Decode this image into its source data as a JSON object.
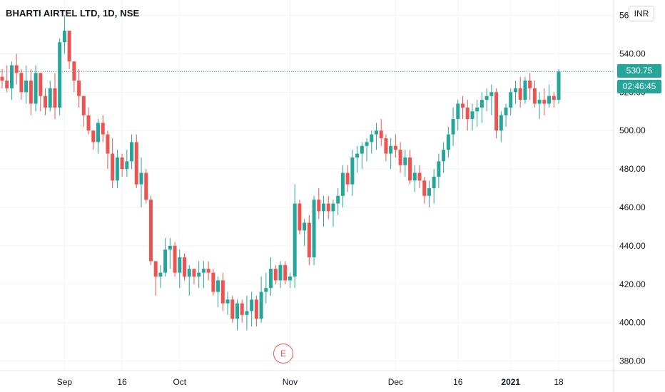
{
  "header": {
    "title": "BHARTI AIRTEL LTD, 1D, NSE",
    "currency_button": "INR"
  },
  "price_tag": {
    "last_price": "530.75",
    "countdown": "02:46:45"
  },
  "earnings_marker": "E",
  "colors": {
    "up": "#26a69a",
    "down": "#ef5350",
    "grid": "#f0f3fa",
    "axis_text": "#131722"
  },
  "chart_data": {
    "type": "candlestick",
    "title": "BHARTI AIRTEL LTD, 1D, NSE",
    "ylim": [
      375,
      568
    ],
    "y_ticks": [
      "560.00",
      "540.00",
      "520.00",
      "500.00",
      "480.00",
      "460.00",
      "440.00",
      "420.00",
      "400.00",
      "380.00"
    ],
    "x_ticks": [
      "Sep",
      "16",
      "Oct",
      "Nov",
      "Dec",
      "16",
      "2021",
      "18"
    ],
    "last_price": 530.75,
    "candles": [
      [
        528,
        532,
        522,
        526
      ],
      [
        526,
        534,
        520,
        522
      ],
      [
        522,
        536,
        516,
        534
      ],
      [
        534,
        540,
        524,
        530
      ],
      [
        530,
        532,
        516,
        520
      ],
      [
        520,
        534,
        514,
        526
      ],
      [
        526,
        532,
        508,
        514
      ],
      [
        514,
        534,
        510,
        530
      ],
      [
        530,
        530,
        510,
        518
      ],
      [
        518,
        522,
        508,
        512
      ],
      [
        512,
        526,
        510,
        522
      ],
      [
        522,
        530,
        506,
        512
      ],
      [
        512,
        548,
        508,
        546
      ],
      [
        546,
        560,
        540,
        552
      ],
      [
        552,
        552,
        532,
        536
      ],
      [
        536,
        536,
        520,
        526
      ],
      [
        526,
        532,
        512,
        518
      ],
      [
        518,
        518,
        502,
        508
      ],
      [
        508,
        512,
        498,
        500
      ],
      [
        500,
        500,
        490,
        494
      ],
      [
        494,
        506,
        488,
        504
      ],
      [
        504,
        508,
        494,
        498
      ],
      [
        498,
        500,
        480,
        488
      ],
      [
        488,
        496,
        470,
        474
      ],
      [
        474,
        490,
        470,
        486
      ],
      [
        486,
        488,
        476,
        480
      ],
      [
        480,
        490,
        476,
        484
      ],
      [
        484,
        498,
        480,
        494
      ],
      [
        494,
        498,
        470,
        472
      ],
      [
        472,
        486,
        460,
        478
      ],
      [
        478,
        480,
        462,
        464
      ],
      [
        464,
        466,
        430,
        432
      ],
      [
        432,
        432,
        414,
        424
      ],
      [
        424,
        430,
        418,
        426
      ],
      [
        426,
        444,
        424,
        438
      ],
      [
        438,
        444,
        428,
        440
      ],
      [
        440,
        442,
        424,
        426
      ],
      [
        426,
        438,
        418,
        434
      ],
      [
        434,
        436,
        422,
        424
      ],
      [
        424,
        430,
        414,
        428
      ],
      [
        428,
        428,
        420,
        424
      ],
      [
        424,
        432,
        418,
        426
      ],
      [
        426,
        432,
        418,
        428
      ],
      [
        428,
        432,
        422,
        426
      ],
      [
        426,
        428,
        414,
        416
      ],
      [
        416,
        424,
        408,
        422
      ],
      [
        422,
        426,
        406,
        410
      ],
      [
        410,
        416,
        404,
        412
      ],
      [
        412,
        414,
        400,
        402
      ],
      [
        402,
        412,
        396,
        410
      ],
      [
        410,
        412,
        400,
        404
      ],
      [
        404,
        414,
        396,
        406
      ],
      [
        406,
        416,
        398,
        412
      ],
      [
        412,
        414,
        398,
        402
      ],
      [
        402,
        424,
        400,
        416
      ],
      [
        416,
        426,
        410,
        418
      ],
      [
        418,
        434,
        414,
        428
      ],
      [
        428,
        430,
        420,
        422
      ],
      [
        422,
        432,
        418,
        430
      ],
      [
        430,
        432,
        420,
        422
      ],
      [
        422,
        426,
        418,
        424
      ],
      [
        424,
        472,
        418,
        462
      ],
      [
        462,
        464,
        446,
        448
      ],
      [
        448,
        454,
        440,
        452
      ],
      [
        452,
        456,
        430,
        434
      ],
      [
        434,
        466,
        430,
        464
      ],
      [
        464,
        470,
        454,
        458
      ],
      [
        458,
        466,
        450,
        462
      ],
      [
        462,
        466,
        454,
        458
      ],
      [
        458,
        464,
        450,
        462
      ],
      [
        462,
        470,
        456,
        466
      ],
      [
        466,
        482,
        460,
        478
      ],
      [
        478,
        482,
        468,
        472
      ],
      [
        472,
        490,
        466,
        486
      ],
      [
        486,
        492,
        478,
        488
      ],
      [
        488,
        494,
        480,
        492
      ],
      [
        492,
        496,
        484,
        494
      ],
      [
        494,
        500,
        488,
        498
      ],
      [
        498,
        504,
        490,
        500
      ],
      [
        500,
        506,
        492,
        496
      ],
      [
        496,
        498,
        484,
        488
      ],
      [
        488,
        496,
        480,
        492
      ],
      [
        492,
        498,
        486,
        490
      ],
      [
        490,
        494,
        478,
        482
      ],
      [
        482,
        490,
        476,
        486
      ],
      [
        486,
        490,
        472,
        474
      ],
      [
        474,
        482,
        468,
        478
      ],
      [
        478,
        482,
        470,
        474
      ],
      [
        474,
        476,
        462,
        466
      ],
      [
        466,
        474,
        460,
        470
      ],
      [
        470,
        480,
        462,
        476
      ],
      [
        476,
        488,
        470,
        484
      ],
      [
        484,
        494,
        478,
        490
      ],
      [
        490,
        502,
        486,
        498
      ],
      [
        498,
        512,
        492,
        506
      ],
      [
        506,
        516,
        500,
        514
      ],
      [
        514,
        518,
        506,
        512
      ],
      [
        512,
        516,
        500,
        506
      ],
      [
        506,
        514,
        500,
        510
      ],
      [
        510,
        516,
        502,
        512
      ],
      [
        512,
        520,
        504,
        516
      ],
      [
        516,
        522,
        510,
        518
      ],
      [
        518,
        524,
        508,
        520
      ],
      [
        520,
        522,
        496,
        500
      ],
      [
        500,
        510,
        494,
        508
      ],
      [
        508,
        514,
        502,
        512
      ],
      [
        512,
        522,
        508,
        520
      ],
      [
        520,
        526,
        514,
        522
      ],
      [
        522,
        528,
        512,
        516
      ],
      [
        516,
        528,
        514,
        526
      ],
      [
        526,
        530,
        516,
        522
      ],
      [
        522,
        526,
        512,
        514
      ],
      [
        514,
        520,
        506,
        516
      ],
      [
        516,
        522,
        508,
        514
      ],
      [
        514,
        524,
        512,
        518
      ],
      [
        518,
        520,
        512,
        516
      ],
      [
        516,
        532,
        514,
        530.75
      ]
    ]
  }
}
